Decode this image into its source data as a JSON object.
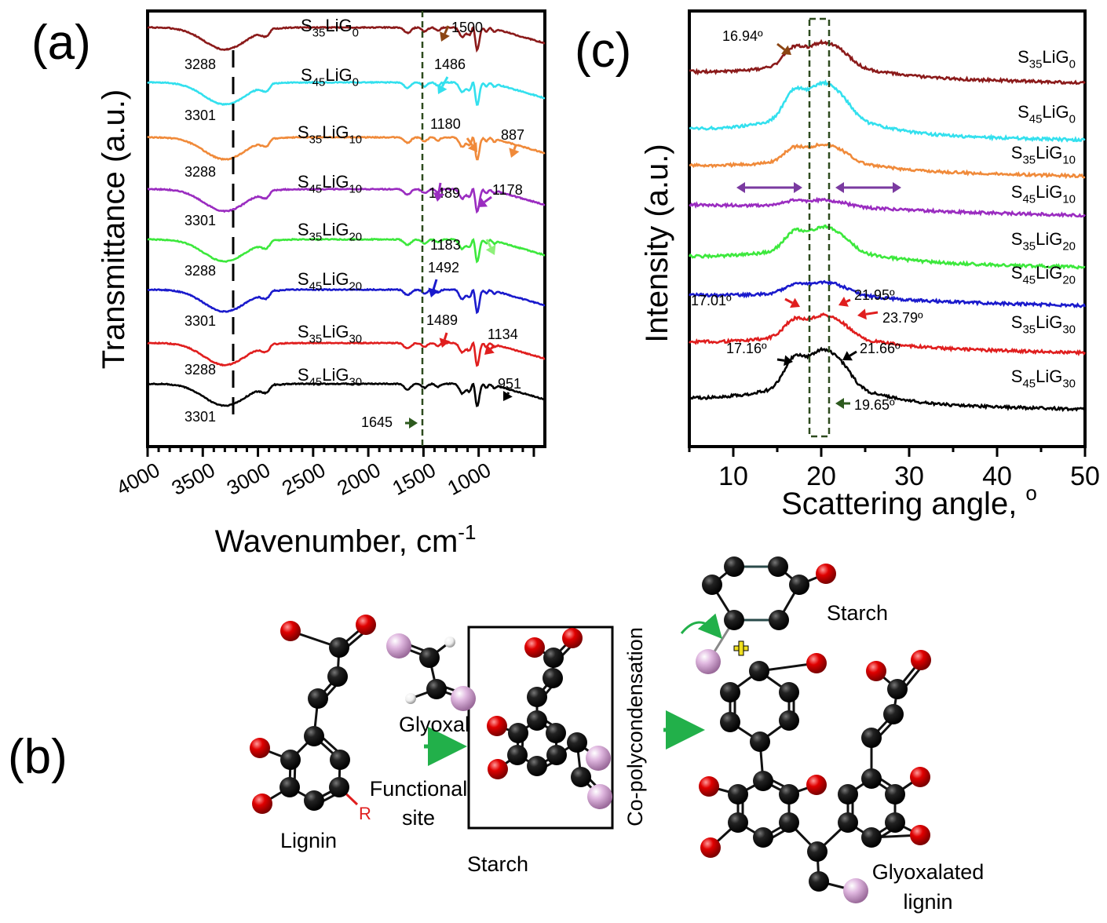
{
  "panels": {
    "a": {
      "label": "(a)"
    },
    "b": {
      "label": "(b)"
    },
    "c": {
      "label": "(c)"
    }
  },
  "chart_data": [
    {
      "id": "ftir",
      "type": "line",
      "xlabel": "Wavenumber, cm",
      "xlabel_sup": "-1",
      "ylabel": "Transmittance (a.u.)",
      "xlim": [
        4000,
        400
      ],
      "reversed_x": true,
      "xticks": [
        4000,
        3500,
        3000,
        2500,
        2000,
        1500,
        1000
      ],
      "series": [
        {
          "name": "S35LiG0",
          "base": "S",
          "sub1": "35",
          "mid": "LiG",
          "sub2": "0",
          "color": "#8b1a1a",
          "peak_label": "3288"
        },
        {
          "name": "S45LiG0",
          "base": "S",
          "sub1": "45",
          "mid": "LiG",
          "sub2": "0",
          "color": "#33e0ee",
          "peak_label": "3301"
        },
        {
          "name": "S35LiG10",
          "base": "S",
          "sub1": "35",
          "mid": "LiG",
          "sub2": "10",
          "color": "#f08a3a",
          "peak_label": "3288"
        },
        {
          "name": "S45LiG10",
          "base": "S",
          "sub1": "45",
          "mid": "LiG",
          "sub2": "10",
          "color": "#9a2cc0",
          "peak_label": "3301"
        },
        {
          "name": "S35LiG20",
          "base": "S",
          "sub1": "35",
          "mid": "LiG",
          "sub2": "20",
          "color": "#3ce83c",
          "peak_label": "3288"
        },
        {
          "name": "S45LiG20",
          "base": "S",
          "sub1": "45",
          "mid": "LiG",
          "sub2": "20",
          "color": "#1a1acc",
          "peak_label": "3301"
        },
        {
          "name": "S35LiG30",
          "base": "S",
          "sub1": "35",
          "mid": "LiG",
          "sub2": "30",
          "color": "#e01e1e",
          "peak_label": "3288"
        },
        {
          "name": "S45LiG30",
          "base": "S",
          "sub1": "45",
          "mid": "LiG",
          "sub2": "30",
          "color": "#000000",
          "peak_label": "3301"
        }
      ],
      "annotations": [
        "1500",
        "1486",
        "1180",
        "887",
        "1489",
        "1178",
        "1183",
        "1492",
        "1489",
        "1134",
        "951",
        "1645"
      ]
    },
    {
      "id": "xrd",
      "type": "line",
      "xlabel": "Scattering angle, ",
      "xlabel_sup": "o",
      "ylabel": "Intensity (a.u.)",
      "xlim": [
        5,
        50
      ],
      "xticks": [
        10,
        20,
        30,
        40,
        50
      ],
      "series": [
        {
          "name": "S35LiG0",
          "base": "S",
          "sub1": "35",
          "mid": "LiG",
          "sub2": "0",
          "color": "#8b1a1a"
        },
        {
          "name": "S45LiG0",
          "base": "S",
          "sub1": "45",
          "mid": "LiG",
          "sub2": "0",
          "color": "#33e0ee"
        },
        {
          "name": "S35LiG10",
          "base": "S",
          "sub1": "35",
          "mid": "LiG",
          "sub2": "10",
          "color": "#f08a3a"
        },
        {
          "name": "S45LiG10",
          "base": "S",
          "sub1": "45",
          "mid": "LiG",
          "sub2": "10",
          "color": "#9a2cc0"
        },
        {
          "name": "S35LiG20",
          "base": "S",
          "sub1": "35",
          "mid": "LiG",
          "sub2": "20",
          "color": "#3ce83c"
        },
        {
          "name": "S45LiG20",
          "base": "S",
          "sub1": "45",
          "mid": "LiG",
          "sub2": "20",
          "color": "#1a1acc"
        },
        {
          "name": "S35LiG30",
          "base": "S",
          "sub1": "35",
          "mid": "LiG",
          "sub2": "30",
          "color": "#e01e1e"
        },
        {
          "name": "S45LiG30",
          "base": "S",
          "sub1": "45",
          "mid": "LiG",
          "sub2": "30",
          "color": "#000000"
        }
      ],
      "annotations": [
        "16.94º",
        "17.01º",
        "21.95º",
        "23.79º",
        "17.16º",
        "21.66º",
        "19.65º"
      ]
    }
  ],
  "scheme": {
    "lignin": "Lignin",
    "R": "R",
    "functional_site_1": "Functional",
    "functional_site_2": "site",
    "glyoxal": "Glyoxal",
    "starch_box": "Starch",
    "copoly": "Co-polycondensation",
    "starch_top": "Starch",
    "glyox_lignin_1": "Glyoxalated",
    "glyox_lignin_2": "lignin"
  }
}
